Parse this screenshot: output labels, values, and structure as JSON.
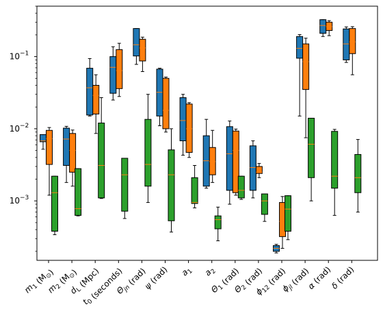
{
  "chart_data": {
    "type": "box",
    "y_scale": "log",
    "ylim": [
      0.00015,
      0.5
    ],
    "y_ticks": [
      {
        "value": 0.001,
        "base": "10",
        "exp": "−3"
      },
      {
        "value": 0.01,
        "base": "10",
        "exp": "−2"
      },
      {
        "value": 0.1,
        "base": "10",
        "exp": "−1"
      }
    ],
    "categories": [
      {
        "main": "m",
        "sub": "1",
        "rest": " (M",
        "sub2": "⊙",
        "tail": ")"
      },
      {
        "main": "m",
        "sub": "2",
        "rest": " (M",
        "sub2": "⊙",
        "tail": ")"
      },
      {
        "main": "d",
        "sub": "L",
        "rest": " (Mpc)",
        "sub2": "",
        "tail": ""
      },
      {
        "main": "t",
        "sub": "0",
        "rest": " (seconds)",
        "sub2": "",
        "tail": ""
      },
      {
        "main": "Θ",
        "sub": "jn",
        "rest": " (rad)",
        "sub2": "",
        "tail": ""
      },
      {
        "main": "ψ",
        "sub": "",
        "rest": " (rad)",
        "sub2": "",
        "tail": ""
      },
      {
        "main": "a",
        "sub": "1",
        "rest": "",
        "sub2": "",
        "tail": ""
      },
      {
        "main": "a",
        "sub": "2",
        "rest": "",
        "sub2": "",
        "tail": ""
      },
      {
        "main": "Θ",
        "sub": "1",
        "rest": " (rad)",
        "sub2": "",
        "tail": ""
      },
      {
        "main": "Θ",
        "sub": "2",
        "rest": " (rad)",
        "sub2": "",
        "tail": ""
      },
      {
        "main": "ϕ",
        "sub": "12",
        "rest": " (rad)",
        "sub2": "",
        "tail": ""
      },
      {
        "main": "ϕ",
        "sub": "jl",
        "rest": " (rad)",
        "sub2": "",
        "tail": ""
      },
      {
        "main": "α",
        "sub": "",
        "rest": " (rad)",
        "sub2": "",
        "tail": ""
      },
      {
        "main": "δ",
        "sub": "",
        "rest": " (rad)",
        "sub2": "",
        "tail": ""
      }
    ],
    "series": [
      {
        "color": "#1f77b4",
        "boxes": [
          [
            0.0052,
            0.0066,
            0.0068,
            0.0083,
            0.0083
          ],
          [
            0.0018,
            0.0031,
            0.0072,
            0.0102,
            0.0108
          ],
          [
            0.015,
            0.0155,
            0.037,
            0.069,
            0.094
          ],
          [
            0.025,
            0.031,
            0.071,
            0.1,
            0.137
          ],
          [
            0.078,
            0.102,
            0.146,
            0.245,
            0.245
          ],
          [
            0.011,
            0.015,
            0.032,
            0.067,
            0.069
          ],
          [
            0.0043,
            0.0068,
            0.013,
            0.027,
            0.03
          ],
          [
            0.0015,
            0.0016,
            0.0036,
            0.008,
            0.0135
          ],
          [
            0.0009,
            0.0014,
            0.0045,
            0.0107,
            0.0128
          ],
          [
            0.0011,
            0.0014,
            0.0029,
            0.0058,
            0.0068
          ],
          [
            0.00019,
            0.0002,
            0.00022,
            0.00024,
            0.00025
          ],
          [
            0.015,
            0.095,
            0.13,
            0.19,
            0.202
          ],
          [
            0.19,
            0.21,
            0.27,
            0.325,
            0.325
          ],
          [
            0.083,
            0.09,
            0.15,
            0.242,
            0.258
          ]
        ]
      },
      {
        "color": "#ff7f0e",
        "boxes": [
          [
            0.0012,
            0.0032,
            0.0073,
            0.0095,
            0.0104
          ],
          [
            0.0016,
            0.0025,
            0.005,
            0.0086,
            0.0096
          ],
          [
            0.0086,
            0.016,
            0.029,
            0.04,
            0.056
          ],
          [
            0.028,
            0.036,
            0.064,
            0.125,
            0.153
          ],
          [
            0.062,
            0.087,
            0.132,
            0.174,
            0.186
          ],
          [
            0.009,
            0.01,
            0.018,
            0.05,
            0.052
          ],
          [
            0.004,
            0.0047,
            0.01,
            0.022,
            0.023
          ],
          [
            0.0018,
            0.0023,
            0.0035,
            0.0055,
            0.0095
          ],
          [
            0.0012,
            0.0013,
            0.005,
            0.0093,
            0.0099
          ],
          [
            0.0021,
            0.0024,
            0.0025,
            0.003,
            0.0033
          ],
          [
            0.00022,
            0.00032,
            0.00052,
            0.00095,
            0.00115
          ],
          [
            0.0075,
            0.035,
            0.085,
            0.15,
            0.18
          ],
          [
            0.195,
            0.23,
            0.26,
            0.3,
            0.315
          ],
          [
            0.056,
            0.11,
            0.16,
            0.245,
            0.26
          ]
        ]
      },
      {
        "color": "#2ca02c",
        "boxes": [
          [
            0.00034,
            0.00038,
            0.0013,
            0.0022,
            0.0022
          ],
          [
            0.00062,
            0.00063,
            0.00078,
            0.0028,
            0.0028
          ],
          [
            0.00108,
            0.0011,
            0.0031,
            0.012,
            0.027
          ],
          [
            0.00057,
            0.00072,
            0.0023,
            0.0039,
            0.0039
          ],
          [
            0.00095,
            0.0016,
            0.0032,
            0.0135,
            0.03
          ],
          [
            0.00037,
            0.00053,
            0.0023,
            0.0051,
            0.01
          ],
          [
            0.0008,
            0.00092,
            0.00095,
            0.0021,
            0.0031
          ],
          [
            0.00028,
            0.00041,
            0.00055,
            0.00062,
            0.00082
          ],
          [
            0.00105,
            0.0011,
            0.0014,
            0.0022,
            0.0022
          ],
          [
            0.00052,
            0.00065,
            0.001,
            0.00125,
            0.00125
          ],
          [
            0.00029,
            0.00038,
            0.00077,
            0.00118,
            0.00118
          ],
          [
            0.001,
            0.0021,
            0.0061,
            0.014,
            0.014
          ],
          [
            0.00063,
            0.0015,
            0.0022,
            0.0092,
            0.0098
          ],
          [
            0.0007,
            0.0013,
            0.0021,
            0.0044,
            0.0071
          ]
        ]
      }
    ],
    "median_color": "#ff7f0e"
  }
}
